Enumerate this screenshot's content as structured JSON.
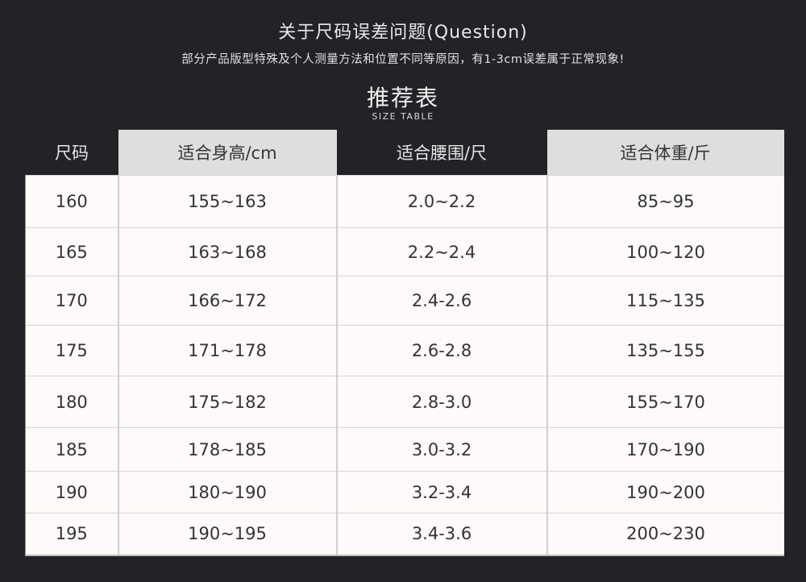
{
  "notice": {
    "title": "关于尺码误差问题(Question)",
    "subtitle": "部分产品版型特殊及个人测量方法和位置不同等原因，有1-3cm误差属于正常现象!"
  },
  "table_heading": {
    "title": "推荐表",
    "subtitle": "SIZE TABLE"
  },
  "table": {
    "headers": [
      "尺码",
      "适合身高/cm",
      "适合腰围/尺",
      "适合体重/斤"
    ],
    "rows": [
      [
        "160",
        "155~163",
        "2.0~2.2",
        "85~95"
      ],
      [
        "165",
        "163~168",
        "2.2~2.4",
        "100~120"
      ],
      [
        "170",
        "166~172",
        "2.4-2.6",
        "115~135"
      ],
      [
        "175",
        "171~178",
        "2.6-2.8",
        "135~155"
      ],
      [
        "180",
        "175~182",
        "2.8-3.0",
        "155~170"
      ],
      [
        "185",
        "178~185",
        "3.0-3.2",
        "170~190"
      ],
      [
        "190",
        "180~190",
        "3.2-3.4",
        "190~200"
      ],
      [
        "195",
        "190~195",
        "3.4-3.6",
        "200~230"
      ]
    ]
  }
}
